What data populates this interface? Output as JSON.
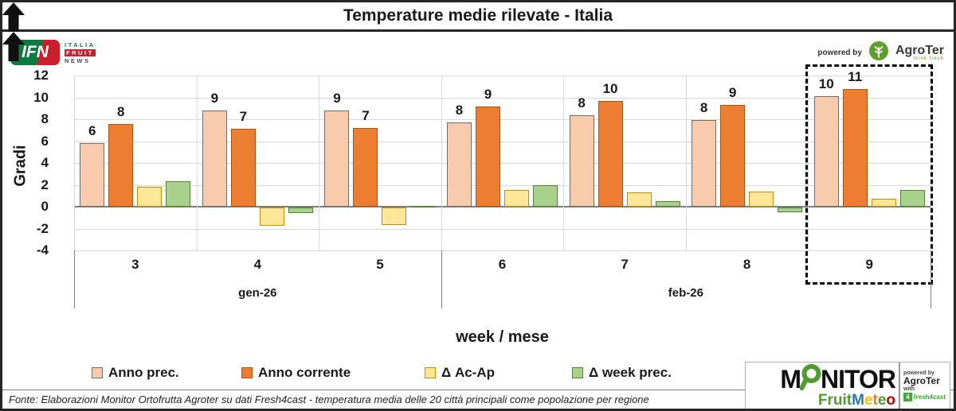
{
  "title": "Temperature medie rilevate - Italia",
  "header": {
    "ifn": {
      "word": "IFN",
      "lines": [
        "ITALIA",
        "FRUIT",
        "NEWS"
      ]
    },
    "powered_by": "powered by",
    "agroter": {
      "name": "AgroTer",
      "tagline": "think fresh"
    }
  },
  "chart_data": {
    "type": "bar",
    "title": "Temperature medie rilevate - Italia",
    "ylabel": "Gradi",
    "xlabel": "week / mese",
    "ylim": [
      -4,
      12
    ],
    "yticks": [
      12,
      10,
      8,
      6,
      4,
      2,
      0,
      -2,
      -4
    ],
    "grid": true,
    "legend_position": "bottom",
    "categories": [
      "3",
      "4",
      "5",
      "6",
      "7",
      "8",
      "9"
    ],
    "month_groups": [
      {
        "label": "gen-26",
        "weeks": [
          "3",
          "4",
          "5"
        ]
      },
      {
        "label": "feb-26",
        "weeks": [
          "6",
          "7",
          "8",
          "9"
        ]
      }
    ],
    "series": [
      {
        "name": "Anno prec.",
        "color": "#F8CBAD",
        "border": "#6e6e6e",
        "values": [
          5.8,
          8.8,
          8.8,
          7.7,
          8.4,
          7.9,
          10.1
        ],
        "labels": [
          "6",
          "9",
          "9",
          "8",
          "8",
          "8",
          "10"
        ]
      },
      {
        "name": "Anno corrente",
        "color": "#ED7D31",
        "border": "#a85612",
        "values": [
          7.6,
          7.1,
          7.2,
          9.2,
          9.7,
          9.3,
          10.8
        ],
        "labels": [
          "8",
          "7",
          "7",
          "9",
          "10",
          "9",
          "11"
        ]
      },
      {
        "name": "Δ Ac-Ap",
        "color": "#FFE699",
        "border": "#BF8F00",
        "values": [
          1.8,
          -1.7,
          -1.6,
          1.5,
          1.3,
          1.4,
          0.7
        ]
      },
      {
        "name": "Δ week prec.",
        "color": "#A9D18E",
        "border": "#548235",
        "values": [
          2.3,
          -0.5,
          0.1,
          2.0,
          0.5,
          -0.4,
          1.5
        ]
      }
    ],
    "annotations": [
      {
        "category": "9",
        "series": 2,
        "symbol": "up-arrow"
      },
      {
        "category": "9",
        "series": 3,
        "symbol": "up-arrow"
      }
    ],
    "highlight_box_category": "9"
  },
  "monitor_logo": {
    "word": "MONITOR",
    "sub": [
      {
        "t": "Fruit",
        "c": "#4f9b2d"
      },
      {
        "t": "M",
        "c": "#2e75b6"
      },
      {
        "t": "e",
        "c": "#ffc000"
      },
      {
        "t": "t",
        "c": "#ed7d31"
      },
      {
        "t": "e",
        "c": "#4f9b2d"
      },
      {
        "t": "o",
        "c": "#c00000"
      }
    ],
    "powered_by": "powered by",
    "agroter": "AgroTer",
    "with_label": "with",
    "fresh4cast": {
      "badge": "4",
      "name": "fresh4cast"
    }
  },
  "footer": {
    "source": "Fonte: Elaborazioni Monitor Ortofrutta Agroter su dati Fresh4cast - temperatura media delle 20 città principali come popolazione per regione"
  }
}
